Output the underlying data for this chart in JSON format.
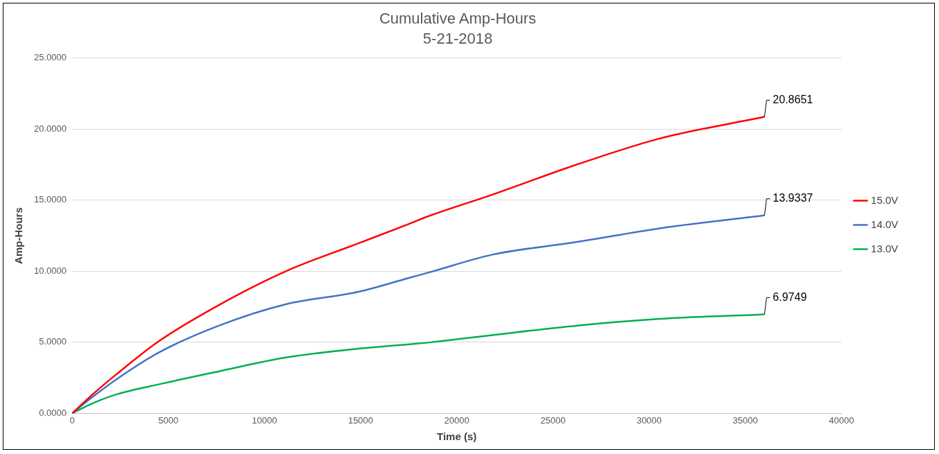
{
  "chart_data": {
    "type": "line",
    "title": "Cumulative Amp-Hours",
    "subtitle": "5-21-2018",
    "xlabel": "Time (s)",
    "ylabel": "Amp-Hours",
    "x": [
      0,
      1070,
      2320,
      4520,
      7600,
      11110,
      14880,
      17510,
      18640,
      21850,
      26200,
      30550,
      36000
    ],
    "series": [
      {
        "name": "15.0V",
        "color": "#ff0000",
        "values": [
          0,
          1.34,
          2.77,
          5.09,
          7.6,
          10.0,
          11.96,
          13.33,
          13.93,
          15.39,
          17.49,
          19.34,
          20.8651
        ],
        "value_labels": [
          null,
          null,
          null,
          null,
          null,
          null,
          null,
          null,
          null,
          null,
          null,
          null,
          "20.8651"
        ]
      },
      {
        "name": "14.0V",
        "color": "#4472c4",
        "values": [
          0,
          1.16,
          2.41,
          4.29,
          6.16,
          7.68,
          8.55,
          9.53,
          9.95,
          11.17,
          12.05,
          13.02,
          13.9337
        ],
        "value_labels": [
          null,
          null,
          null,
          null,
          null,
          null,
          null,
          null,
          null,
          null,
          null,
          null,
          "13.9337"
        ]
      },
      {
        "name": "13.0V",
        "color": "#00b050",
        "values": [
          0,
          0.71,
          1.34,
          2.05,
          2.95,
          3.93,
          4.55,
          4.86,
          5.0,
          5.51,
          6.17,
          6.65,
          6.9749
        ],
        "value_labels": [
          null,
          null,
          null,
          null,
          null,
          null,
          null,
          null,
          null,
          null,
          null,
          null,
          "6.9749"
        ]
      }
    ],
    "xlim": [
      0,
      40000
    ],
    "xticks": [
      0,
      5000,
      10000,
      15000,
      20000,
      25000,
      30000,
      35000,
      40000
    ],
    "ylim": [
      0,
      25
    ],
    "yticks": [
      {
        "value": 0,
        "label": "0.0000"
      },
      {
        "value": 5,
        "label": "5.0000"
      },
      {
        "value": 10,
        "label": "10.0000"
      },
      {
        "value": 15,
        "label": "15.0000"
      },
      {
        "value": 20,
        "label": "20.0000"
      },
      {
        "value": 25,
        "label": "25.0000"
      }
    ],
    "grid": "y",
    "legend": "right",
    "marker": "none",
    "line_style": "solid"
  }
}
